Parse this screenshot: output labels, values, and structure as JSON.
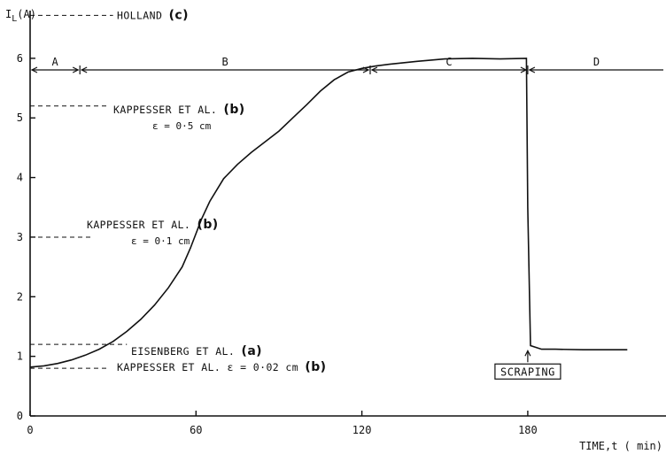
{
  "chart_data": {
    "type": "line",
    "title": "",
    "ylabel": "I",
    "ylabel_subscript": "L",
    "ylabel_unit": "(A)",
    "xlabel": "TIME,t ( min)",
    "xlim": [
      0,
      230
    ],
    "ylim": [
      0,
      6.8
    ],
    "x_ticks": [
      0,
      60,
      120,
      180
    ],
    "x_tick_labels": [
      "0",
      "60",
      "120",
      "180"
    ],
    "y_ticks": [
      0,
      1,
      2,
      3,
      4,
      5,
      6
    ],
    "y_tick_labels": [
      "0",
      "1",
      "2",
      "3",
      "4",
      "5",
      "6"
    ],
    "grid": false,
    "series": [
      {
        "x": [
          0,
          5,
          10,
          15,
          20,
          25,
          30,
          35,
          40,
          45,
          50,
          55,
          58,
          62,
          65,
          70,
          75,
          80,
          85,
          90,
          95,
          100,
          105,
          110,
          115,
          120,
          125,
          130,
          140,
          150,
          160,
          170,
          179.5,
          180,
          181,
          185,
          190,
          200,
          210,
          216
        ],
        "y": [
          0.82,
          0.84,
          0.88,
          0.94,
          1.02,
          1.12,
          1.25,
          1.42,
          1.62,
          1.86,
          2.15,
          2.5,
          2.82,
          3.3,
          3.6,
          3.98,
          4.22,
          4.42,
          4.6,
          4.78,
          5.0,
          5.22,
          5.45,
          5.64,
          5.77,
          5.83,
          5.87,
          5.9,
          5.95,
          5.99,
          6.0,
          5.99,
          6.0,
          3.5,
          1.18,
          1.12,
          1.12,
          1.11,
          1.11,
          1.11
        ]
      }
    ],
    "reference_lines": [
      {
        "y": 6.72,
        "x_end": 30,
        "label": "HOLLAND",
        "tag": "(c)",
        "eps": ""
      },
      {
        "y": 5.2,
        "x_end": 28,
        "label": "KAPPESSER ET AL.",
        "tag": "(b)",
        "eps": "ε = 0·5 cm"
      },
      {
        "y": 3.0,
        "x_end": 22,
        "label": "KAPPESSER ET AL.",
        "tag": "(b)",
        "eps": "ε = 0·1 cm"
      },
      {
        "y": 1.2,
        "x_end": 35,
        "label": "EISENBERG ET AL.",
        "tag": "(a)",
        "eps": ""
      },
      {
        "y": 0.8,
        "x_end": 28,
        "label": "KAPPESSER ET AL.  ε = 0·02 cm",
        "tag": "(b)",
        "eps": ""
      }
    ],
    "regions": [
      {
        "label": "A",
        "x_start": 0,
        "x_end": 18
      },
      {
        "label": "B",
        "x_start": 18,
        "x_end": 123
      },
      {
        "label": "C",
        "x_start": 123,
        "x_end": 180
      },
      {
        "label": "D",
        "x_start": 180,
        "x_end": 230
      }
    ],
    "annotations": [
      {
        "text": "SCRAPING",
        "x": 180,
        "y": 1.05
      }
    ]
  }
}
